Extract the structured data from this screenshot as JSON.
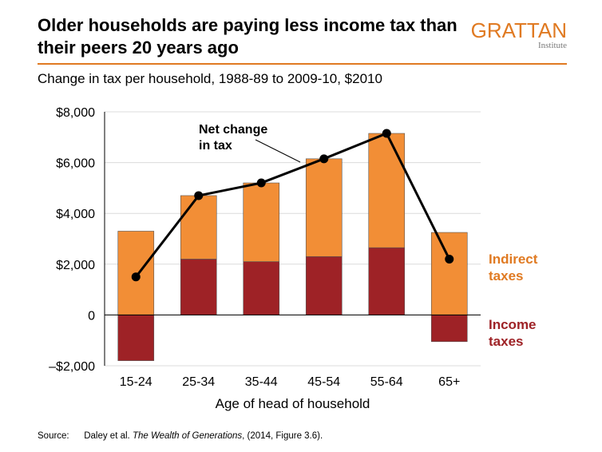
{
  "header": {
    "title": "Older households are paying less income tax than their peers 20 years ago",
    "subtitle": "Change in tax per household, 1988-89 to 2009-10, $2010"
  },
  "logo": {
    "main": "GRATTAN",
    "sub": "Institute"
  },
  "source": {
    "label": "Source:",
    "text_pre": "Daley et al. ",
    "text_italic": "The Wealth of Generations",
    "text_post": ", (2014, Figure 3.6)."
  },
  "colors": {
    "accent": "#e07a22",
    "indirect": "#f28e36",
    "income": "#9e2226",
    "line": "#000000"
  },
  "chart_data": {
    "type": "bar",
    "stacked": true,
    "categories": [
      "15-24",
      "25-34",
      "35-44",
      "45-54",
      "55-64",
      "65+"
    ],
    "series": [
      {
        "name": "Income taxes",
        "values": [
          -1800,
          2200,
          2100,
          2300,
          2650,
          -1050
        ]
      },
      {
        "name": "Indirect taxes",
        "values": [
          3300,
          2500,
          3100,
          3850,
          4500,
          3250
        ]
      }
    ],
    "line": {
      "name": "Net change in tax",
      "values": [
        1500,
        4700,
        5200,
        6150,
        7150,
        2200
      ]
    },
    "annotation": "Net change in tax",
    "xlabel": "Age of head of household",
    "ylabel": "",
    "ylim": [
      -2000,
      8000
    ],
    "yticks": [
      -2000,
      0,
      2000,
      4000,
      6000,
      8000
    ],
    "ytick_labels": [
      "–$2,000",
      "0",
      "$2,000",
      "$4,000",
      "$6,000",
      "$8,000"
    ],
    "legend": [
      {
        "label": "Indirect taxes",
        "color": "#e07a22"
      },
      {
        "label": "Income taxes",
        "color": "#9e2226"
      }
    ],
    "grid": true
  }
}
